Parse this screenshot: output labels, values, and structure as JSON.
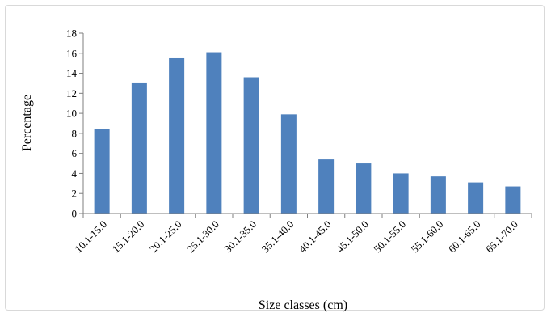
{
  "chart_data": {
    "type": "bar",
    "title": "",
    "xlabel": "Size classes (cm)",
    "ylabel": "Percentage",
    "ylim": [
      0,
      18
    ],
    "yticks": [
      0,
      2,
      4,
      6,
      8,
      10,
      12,
      14,
      16,
      18
    ],
    "categories": [
      "10.1-15.0",
      "15.1-20.0",
      "20.1-25.0",
      "25.1-30.0",
      "30.1-35.0",
      "35.1-40.0",
      "40.1-45.0",
      "45.1-50.0",
      "50.1-55.0",
      "55.1-60.0",
      "60.1-65.0",
      "65.1-70.0"
    ],
    "values": [
      8.4,
      13.0,
      15.5,
      16.1,
      13.6,
      9.9,
      5.4,
      5.0,
      4.0,
      3.7,
      3.1,
      2.7
    ],
    "bar_color": "#4f81bd",
    "grid": false,
    "legend": "none"
  }
}
